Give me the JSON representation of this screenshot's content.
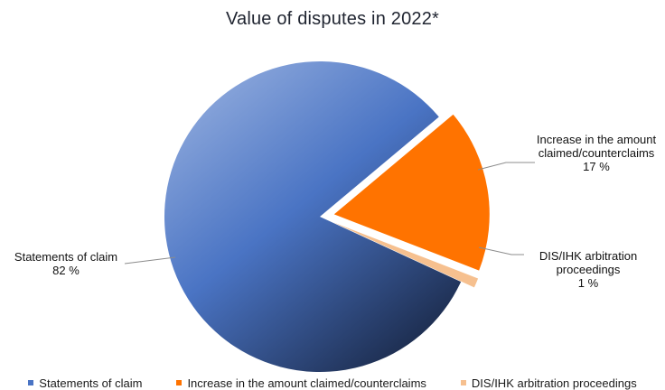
{
  "chart_data": {
    "type": "pie",
    "title": "Value of disputes in 2022*",
    "slices": [
      {
        "name": "Statements of claim",
        "value": 82,
        "label_value": "82 %",
        "color": "#4a74c4"
      },
      {
        "name": "Increase in the amount claimed/counterclaims",
        "label_lines": [
          "Increase in the amount",
          "claimed/counterclaims"
        ],
        "value": 17,
        "label_value": "17 %",
        "color": "#ff7300"
      },
      {
        "name": "DIS/IHK arbitration proceedings",
        "label_lines": [
          "DIS/IHK arbitration",
          "proceedings"
        ],
        "value": 1,
        "label_value": "1 %",
        "color": "#f6c08f"
      }
    ],
    "legend": {
      "position": "bottom",
      "items": [
        "Statements of claim",
        "Increase in the amount claimed/counterclaims",
        "DIS/IHK arbitration proceedings"
      ]
    }
  }
}
